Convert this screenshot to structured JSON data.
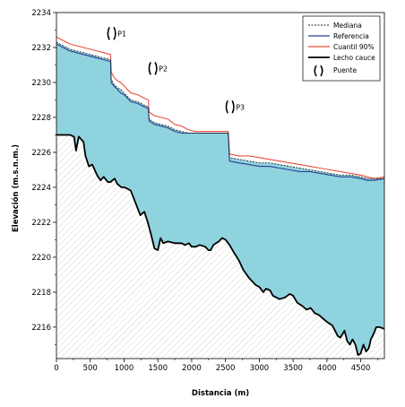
{
  "chart_data": {
    "type": "line",
    "xlabel": "Distancia (m)",
    "ylabel": "Elevación (m.s.n.m.)",
    "xlim": [
      0,
      4850
    ],
    "ylim": [
      2214.2,
      2234
    ],
    "x_ticks": [
      0,
      500,
      1000,
      1500,
      2000,
      2500,
      3000,
      3500,
      4000,
      4500
    ],
    "y_ticks": [
      2216,
      2218,
      2220,
      2222,
      2224,
      2226,
      2228,
      2230,
      2232,
      2234
    ],
    "x_tick_labels": [
      "0",
      "500",
      "1000",
      "1500",
      "2000",
      "2500",
      "3000",
      "3500",
      "4000",
      "4500"
    ],
    "y_tick_labels": [
      "2216",
      "2218",
      "2220",
      "2222",
      "2224",
      "2226",
      "2228",
      "2230",
      "2232",
      "2234"
    ],
    "legend": {
      "placement": "top-right",
      "entries": [
        "Mediana",
        "Referencia",
        "Cuantil 90%",
        "Lecho cauce",
        "Puente"
      ]
    },
    "colors": {
      "water_fill": "#8fd3df",
      "mediana": "#222222",
      "referencia": "#2b3f8f",
      "cuantil": "#e8503a",
      "lecho": "#000000",
      "hatch": "#c8c8c8"
    },
    "series": [
      {
        "name": "Lecho cauce",
        "points": [
          [
            0,
            2227
          ],
          [
            60,
            2227
          ],
          [
            200,
            2227
          ],
          [
            260,
            2226.9
          ],
          [
            290,
            2226.1
          ],
          [
            330,
            2226.9
          ],
          [
            400,
            2226.6
          ],
          [
            430,
            2225.8
          ],
          [
            480,
            2225.2
          ],
          [
            530,
            2225.3
          ],
          [
            600,
            2224.7
          ],
          [
            650,
            2224.4
          ],
          [
            700,
            2224.6
          ],
          [
            760,
            2224.3
          ],
          [
            800,
            2224.3
          ],
          [
            860,
            2224.5
          ],
          [
            900,
            2224.2
          ],
          [
            960,
            2224.0
          ],
          [
            1000,
            2224.0
          ],
          [
            1060,
            2223.9
          ],
          [
            1100,
            2223.8
          ],
          [
            1150,
            2223.3
          ],
          [
            1200,
            2222.8
          ],
          [
            1240,
            2222.4
          ],
          [
            1300,
            2222.6
          ],
          [
            1350,
            2222.0
          ],
          [
            1400,
            2221.3
          ],
          [
            1450,
            2220.5
          ],
          [
            1500,
            2220.4
          ],
          [
            1540,
            2221.1
          ],
          [
            1580,
            2220.8
          ],
          [
            1650,
            2220.9
          ],
          [
            1750,
            2220.8
          ],
          [
            1850,
            2220.8
          ],
          [
            1900,
            2220.7
          ],
          [
            1960,
            2220.8
          ],
          [
            2000,
            2220.6
          ],
          [
            2060,
            2220.6
          ],
          [
            2120,
            2220.7
          ],
          [
            2200,
            2220.6
          ],
          [
            2250,
            2220.4
          ],
          [
            2280,
            2220.4
          ],
          [
            2320,
            2220.7
          ],
          [
            2400,
            2220.9
          ],
          [
            2450,
            2221.1
          ],
          [
            2500,
            2221.0
          ],
          [
            2560,
            2220.7
          ],
          [
            2620,
            2220.3
          ],
          [
            2700,
            2219.8
          ],
          [
            2760,
            2219.3
          ],
          [
            2850,
            2218.8
          ],
          [
            2950,
            2218.4
          ],
          [
            3000,
            2218.3
          ],
          [
            3060,
            2218.0
          ],
          [
            3100,
            2218.2
          ],
          [
            3160,
            2218.1
          ],
          [
            3200,
            2217.8
          ],
          [
            3300,
            2217.6
          ],
          [
            3380,
            2217.7
          ],
          [
            3450,
            2217.9
          ],
          [
            3500,
            2217.8
          ],
          [
            3560,
            2217.4
          ],
          [
            3640,
            2217.2
          ],
          [
            3700,
            2217.0
          ],
          [
            3760,
            2217.1
          ],
          [
            3820,
            2216.8
          ],
          [
            3880,
            2216.7
          ],
          [
            3940,
            2216.5
          ],
          [
            4000,
            2216.3
          ],
          [
            4080,
            2216.1
          ],
          [
            4120,
            2215.8
          ],
          [
            4160,
            2215.5
          ],
          [
            4200,
            2215.4
          ],
          [
            4260,
            2215.8
          ],
          [
            4300,
            2215.2
          ],
          [
            4340,
            2215.0
          ],
          [
            4380,
            2215.3
          ],
          [
            4420,
            2215.0
          ],
          [
            4460,
            2214.4
          ],
          [
            4500,
            2214.5
          ],
          [
            4540,
            2215.0
          ],
          [
            4580,
            2214.6
          ],
          [
            4620,
            2214.8
          ],
          [
            4650,
            2215.3
          ],
          [
            4700,
            2215.7
          ],
          [
            4730,
            2216.0
          ],
          [
            4780,
            2216.0
          ],
          [
            4850,
            2215.9
          ]
        ]
      },
      {
        "name": "Mediana",
        "points": [
          [
            0,
            2232.3
          ],
          [
            100,
            2232.1
          ],
          [
            200,
            2231.9
          ],
          [
            300,
            2231.8
          ],
          [
            400,
            2231.7
          ],
          [
            500,
            2231.6
          ],
          [
            600,
            2231.5
          ],
          [
            700,
            2231.4
          ],
          [
            800,
            2231.3
          ],
          [
            810,
            2230.2
          ],
          [
            850,
            2229.9
          ],
          [
            900,
            2229.7
          ],
          [
            950,
            2229.6
          ],
          [
            1000,
            2229.4
          ],
          [
            1050,
            2229.2
          ],
          [
            1100,
            2229.0
          ],
          [
            1200,
            2228.9
          ],
          [
            1300,
            2228.7
          ],
          [
            1360,
            2228.6
          ],
          [
            1370,
            2227.9
          ],
          [
            1450,
            2227.7
          ],
          [
            1550,
            2227.6
          ],
          [
            1650,
            2227.5
          ],
          [
            1750,
            2227.3
          ],
          [
            1850,
            2227.2
          ],
          [
            1950,
            2227.1
          ],
          [
            2050,
            2227.1
          ],
          [
            2200,
            2227.1
          ],
          [
            2350,
            2227.1
          ],
          [
            2540,
            2227.1
          ],
          [
            2560,
            2225.7
          ],
          [
            2700,
            2225.6
          ],
          [
            2850,
            2225.5
          ],
          [
            3000,
            2225.4
          ],
          [
            3150,
            2225.4
          ],
          [
            3300,
            2225.3
          ],
          [
            3450,
            2225.2
          ],
          [
            3600,
            2225.1
          ],
          [
            3750,
            2225.0
          ],
          [
            3900,
            2224.9
          ],
          [
            4050,
            2224.8
          ],
          [
            4200,
            2224.7
          ],
          [
            4350,
            2224.7
          ],
          [
            4500,
            2224.6
          ],
          [
            4600,
            2224.5
          ],
          [
            4700,
            2224.5
          ],
          [
            4850,
            2224.5
          ]
        ]
      },
      {
        "name": "Referencia",
        "points": [
          [
            0,
            2232.2
          ],
          [
            100,
            2232.0
          ],
          [
            200,
            2231.8
          ],
          [
            300,
            2231.7
          ],
          [
            400,
            2231.6
          ],
          [
            500,
            2231.5
          ],
          [
            600,
            2231.4
          ],
          [
            700,
            2231.3
          ],
          [
            800,
            2231.2
          ],
          [
            810,
            2230.0
          ],
          [
            850,
            2229.8
          ],
          [
            900,
            2229.6
          ],
          [
            950,
            2229.4
          ],
          [
            1000,
            2229.3
          ],
          [
            1050,
            2229.1
          ],
          [
            1100,
            2228.9
          ],
          [
            1200,
            2228.8
          ],
          [
            1300,
            2228.6
          ],
          [
            1360,
            2228.5
          ],
          [
            1370,
            2227.8
          ],
          [
            1450,
            2227.6
          ],
          [
            1550,
            2227.5
          ],
          [
            1650,
            2227.4
          ],
          [
            1750,
            2227.2
          ],
          [
            1850,
            2227.1
          ],
          [
            1950,
            2227.1
          ],
          [
            2050,
            2227.1
          ],
          [
            2200,
            2227.1
          ],
          [
            2350,
            2227.1
          ],
          [
            2540,
            2227.1
          ],
          [
            2560,
            2225.5
          ],
          [
            2700,
            2225.4
          ],
          [
            2850,
            2225.3
          ],
          [
            3000,
            2225.2
          ],
          [
            3150,
            2225.2
          ],
          [
            3300,
            2225.1
          ],
          [
            3450,
            2225.0
          ],
          [
            3600,
            2224.9
          ],
          [
            3750,
            2224.9
          ],
          [
            3900,
            2224.8
          ],
          [
            4050,
            2224.7
          ],
          [
            4200,
            2224.6
          ],
          [
            4350,
            2224.6
          ],
          [
            4500,
            2224.5
          ],
          [
            4600,
            2224.4
          ],
          [
            4700,
            2224.4
          ],
          [
            4850,
            2224.5
          ]
        ]
      },
      {
        "name": "Cuantil 90%",
        "points": [
          [
            0,
            2232.6
          ],
          [
            100,
            2232.4
          ],
          [
            200,
            2232.2
          ],
          [
            300,
            2232.1
          ],
          [
            400,
            2232.0
          ],
          [
            500,
            2231.9
          ],
          [
            600,
            2231.8
          ],
          [
            700,
            2231.7
          ],
          [
            800,
            2231.6
          ],
          [
            810,
            2230.6
          ],
          [
            850,
            2230.3
          ],
          [
            900,
            2230.1
          ],
          [
            950,
            2230.0
          ],
          [
            1000,
            2229.8
          ],
          [
            1050,
            2229.6
          ],
          [
            1100,
            2229.4
          ],
          [
            1200,
            2229.3
          ],
          [
            1300,
            2229.1
          ],
          [
            1360,
            2229.0
          ],
          [
            1370,
            2228.3
          ],
          [
            1450,
            2228.1
          ],
          [
            1550,
            2228.0
          ],
          [
            1650,
            2227.9
          ],
          [
            1750,
            2227.6
          ],
          [
            1850,
            2227.5
          ],
          [
            1950,
            2227.3
          ],
          [
            2050,
            2227.2
          ],
          [
            2200,
            2227.2
          ],
          [
            2350,
            2227.2
          ],
          [
            2540,
            2227.2
          ],
          [
            2560,
            2225.9
          ],
          [
            2700,
            2225.8
          ],
          [
            2850,
            2225.8
          ],
          [
            3000,
            2225.7
          ],
          [
            3150,
            2225.6
          ],
          [
            3300,
            2225.5
          ],
          [
            3450,
            2225.4
          ],
          [
            3600,
            2225.3
          ],
          [
            3750,
            2225.2
          ],
          [
            3900,
            2225.1
          ],
          [
            4050,
            2225.0
          ],
          [
            4200,
            2224.9
          ],
          [
            4350,
            2224.8
          ],
          [
            4500,
            2224.7
          ],
          [
            4600,
            2224.6
          ],
          [
            4700,
            2224.5
          ],
          [
            4850,
            2224.6
          ]
        ]
      }
    ],
    "bridges": [
      {
        "label": "P1",
        "x": 810,
        "y": 2232.8
      },
      {
        "label": "P2",
        "x": 1420,
        "y": 2230.8
      },
      {
        "label": "P3",
        "x": 2560,
        "y": 2228.6
      }
    ]
  }
}
